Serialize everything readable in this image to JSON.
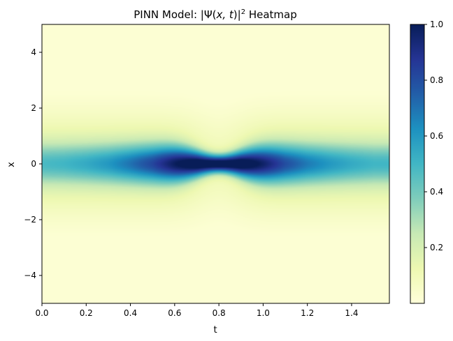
{
  "chart_data": {
    "type": "heatmap",
    "title_prefix": "PINN Model: |Ψ(",
    "title_vars": "x, t",
    "title_mid": ")|",
    "title_sup": "2",
    "title_suffix": " Heatmap",
    "xlabel": "t",
    "ylabel": "x",
    "xlim": [
      0,
      1.5708
    ],
    "ylim": [
      -5,
      5
    ],
    "x_ticks": [
      0,
      0.2,
      0.4,
      0.6,
      0.8,
      1.0,
      1.2,
      1.4
    ],
    "x_tick_labels": [
      "0.0",
      "0.2",
      "0.4",
      "0.6",
      "0.8",
      "1.0",
      "1.2",
      "1.4"
    ],
    "y_ticks": [
      -4,
      -2,
      0,
      2,
      4
    ],
    "y_tick_labels": [
      "−4",
      "−2",
      "0",
      "2",
      "4"
    ],
    "colorbar": {
      "colormap": "YlGnBu",
      "range": [
        0,
        1.0
      ],
      "ticks": [
        0.2,
        0.4,
        0.6,
        0.8,
        1.0
      ],
      "tick_labels": [
        "0.2",
        "0.4",
        "0.6",
        "0.8",
        "1.0"
      ]
    },
    "field": {
      "description_values": "Approximate |Ψ|² sampled on the (t, x) grid",
      "t_samples": [
        0,
        0.1,
        0.2,
        0.3,
        0.4,
        0.5,
        0.6,
        0.7,
        0.8,
        0.9,
        1.0,
        1.1,
        1.2,
        1.3,
        1.4,
        1.5
      ],
      "peak_at_x0": [
        0.28,
        0.3,
        0.34,
        0.4,
        0.5,
        0.62,
        0.8,
        0.95,
        1.0,
        0.95,
        0.78,
        0.6,
        0.48,
        0.4,
        0.34,
        0.3
      ],
      "background_level": 0.02,
      "peak_t": 0.8,
      "peak_x": 0.0
    }
  }
}
